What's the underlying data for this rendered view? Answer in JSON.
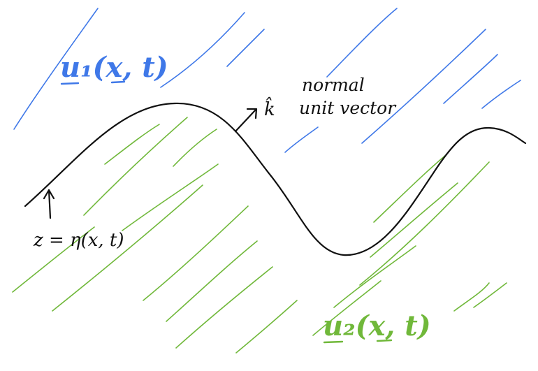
{
  "labels": {
    "upper_velocity": "u₁(x, t)",
    "lower_velocity": "u₂(x, t)",
    "normal_symbol": "k̂",
    "normal_line1": "normal",
    "normal_line2": "unit vector",
    "surface_equation": "z = η(x, t)"
  },
  "colors": {
    "upper_fluid": "#3f78e8",
    "lower_fluid": "#70b83a",
    "ink": "#111111"
  }
}
